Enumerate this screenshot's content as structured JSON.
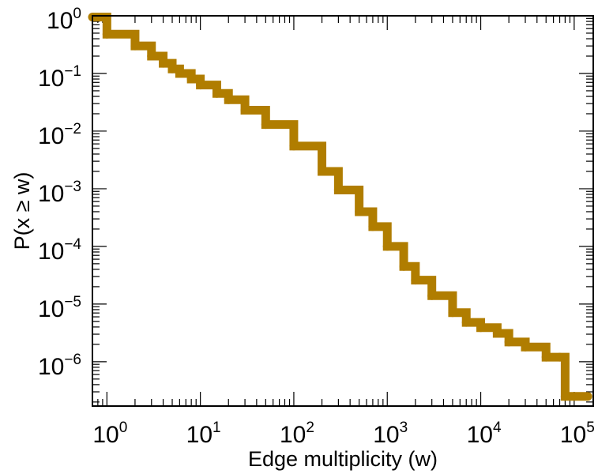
{
  "chart_data": {
    "type": "line",
    "title": "",
    "xlabel": "Edge multiplicity (w)",
    "ylabel": "P(x ≥ w)",
    "x_scale": "log",
    "y_scale": "log",
    "xlim": [
      0.7,
      160000
    ],
    "ylim": [
      1.7e-07,
      1
    ],
    "grid": false,
    "legend": "none",
    "x_tick_labels": [
      {
        "base": "10",
        "exp": "0"
      },
      {
        "base": "10",
        "exp": "1"
      },
      {
        "base": "10",
        "exp": "2"
      },
      {
        "base": "10",
        "exp": "3"
      },
      {
        "base": "10",
        "exp": "4"
      },
      {
        "base": "10",
        "exp": "5"
      }
    ],
    "y_tick_labels": [
      {
        "base": "10",
        "exp": "0"
      },
      {
        "base": "10",
        "exp": "−1"
      },
      {
        "base": "10",
        "exp": "−2"
      },
      {
        "base": "10",
        "exp": "−3"
      },
      {
        "base": "10",
        "exp": "−4"
      },
      {
        "base": "10",
        "exp": "−5"
      },
      {
        "base": "10",
        "exp": "−6"
      }
    ],
    "series": [
      {
        "color": "#b07d00",
        "step": true,
        "x": [
          0.7,
          1,
          2,
          3,
          4,
          5,
          6,
          8,
          10,
          15,
          20,
          30,
          50,
          100,
          200,
          300,
          500,
          700,
          1000,
          1500,
          2000,
          3000,
          5000,
          7000,
          10000,
          15000,
          20000,
          30000,
          50000,
          70000,
          80000,
          140000
        ],
        "y": [
          0.95,
          0.48,
          0.3,
          0.2,
          0.15,
          0.12,
          0.1,
          0.08,
          0.063,
          0.045,
          0.035,
          0.023,
          0.013,
          0.0055,
          0.002,
          0.00095,
          0.0004,
          0.00022,
          0.0001,
          4.5e-05,
          2.6e-05,
          1.4e-05,
          7.1e-06,
          4.8e-06,
          3.9e-06,
          3.1e-06,
          2.2e-06,
          1.8e-06,
          1.2e-06,
          1.2e-06,
          2.5e-07,
          2.5e-07
        ]
      }
    ]
  }
}
